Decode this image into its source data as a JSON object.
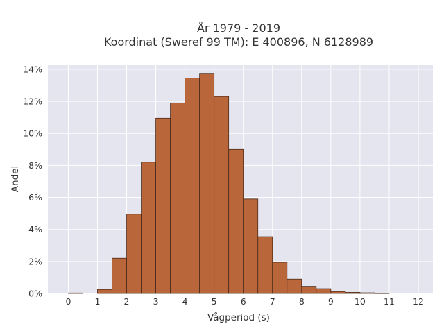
{
  "chart_data": {
    "type": "bar",
    "title": "År 1979 - 2019",
    "subtitle": "Koordinat (Sweref 99 TM): E 400896, N 6128989",
    "xlabel": "Vågperiod (s)",
    "ylabel": "Andel",
    "xlim": [
      -0.7,
      12.5
    ],
    "ylim": [
      0,
      14.3
    ],
    "x_ticks": [
      "0",
      "1",
      "2",
      "3",
      "4",
      "5",
      "6",
      "7",
      "8",
      "9",
      "10",
      "11",
      "12"
    ],
    "y_ticks": [
      "0%",
      "2%",
      "4%",
      "6%",
      "8%",
      "10%",
      "12%",
      "14%"
    ],
    "grid": true,
    "bin_width": 0.5,
    "bins": [
      {
        "start": 0.0,
        "value": 0.03
      },
      {
        "start": 1.0,
        "value": 0.25
      },
      {
        "start": 1.5,
        "value": 2.2
      },
      {
        "start": 2.0,
        "value": 4.95
      },
      {
        "start": 2.5,
        "value": 8.2
      },
      {
        "start": 3.0,
        "value": 10.95
      },
      {
        "start": 3.5,
        "value": 11.9
      },
      {
        "start": 4.0,
        "value": 13.45
      },
      {
        "start": 4.5,
        "value": 13.75
      },
      {
        "start": 5.0,
        "value": 12.3
      },
      {
        "start": 5.5,
        "value": 9.0
      },
      {
        "start": 6.0,
        "value": 5.9
      },
      {
        "start": 6.5,
        "value": 3.55
      },
      {
        "start": 7.0,
        "value": 1.95
      },
      {
        "start": 7.5,
        "value": 0.9
      },
      {
        "start": 8.0,
        "value": 0.45
      },
      {
        "start": 8.5,
        "value": 0.3
      },
      {
        "start": 9.0,
        "value": 0.12
      },
      {
        "start": 9.5,
        "value": 0.07
      },
      {
        "start": 10.0,
        "value": 0.04
      },
      {
        "start": 10.5,
        "value": 0.02
      }
    ],
    "colors": {
      "bar_fill": "#b9663a",
      "bar_stroke": "#4a2a1a",
      "plot_bg": "#e5e5ef",
      "grid": "#ffffff"
    }
  }
}
